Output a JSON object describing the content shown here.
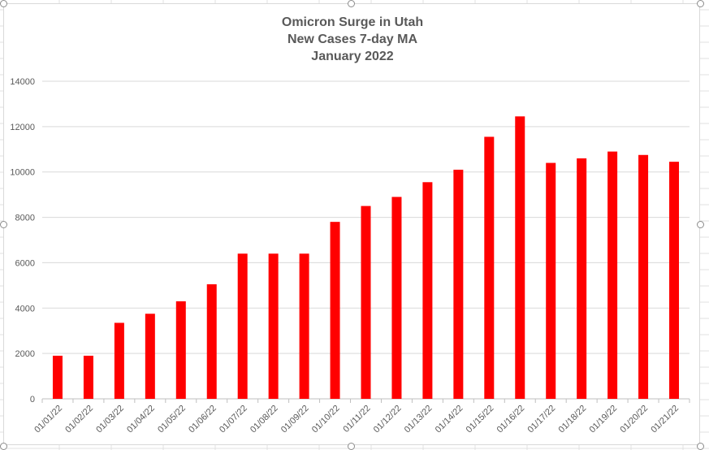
{
  "chart_data": {
    "type": "bar",
    "title_lines": [
      "Omicron Surge in Utah",
      "New Cases 7-day MA",
      "January 2022"
    ],
    "xlabel": "",
    "ylabel": "",
    "ylim": [
      0,
      14000
    ],
    "yticks": [
      0,
      2000,
      4000,
      6000,
      8000,
      10000,
      12000,
      14000
    ],
    "grid": true,
    "legend": "none",
    "bar_color": "#ff0000",
    "categories": [
      "01/01/22",
      "01/02/22",
      "01/03/22",
      "01/04/22",
      "01/05/22",
      "01/06/22",
      "01/07/22",
      "01/08/22",
      "01/09/22",
      "01/10/22",
      "01/11/22",
      "01/12/22",
      "01/13/22",
      "01/14/22",
      "01/15/22",
      "01/16/22",
      "01/17/22",
      "01/18/22",
      "01/19/22",
      "01/20/22",
      "01/21/22"
    ],
    "values": [
      1900,
      1900,
      3350,
      3750,
      4300,
      5050,
      6400,
      6400,
      6400,
      7800,
      8500,
      8900,
      9550,
      10100,
      11550,
      12450,
      10400,
      10600,
      10900,
      10750,
      10450
    ]
  }
}
